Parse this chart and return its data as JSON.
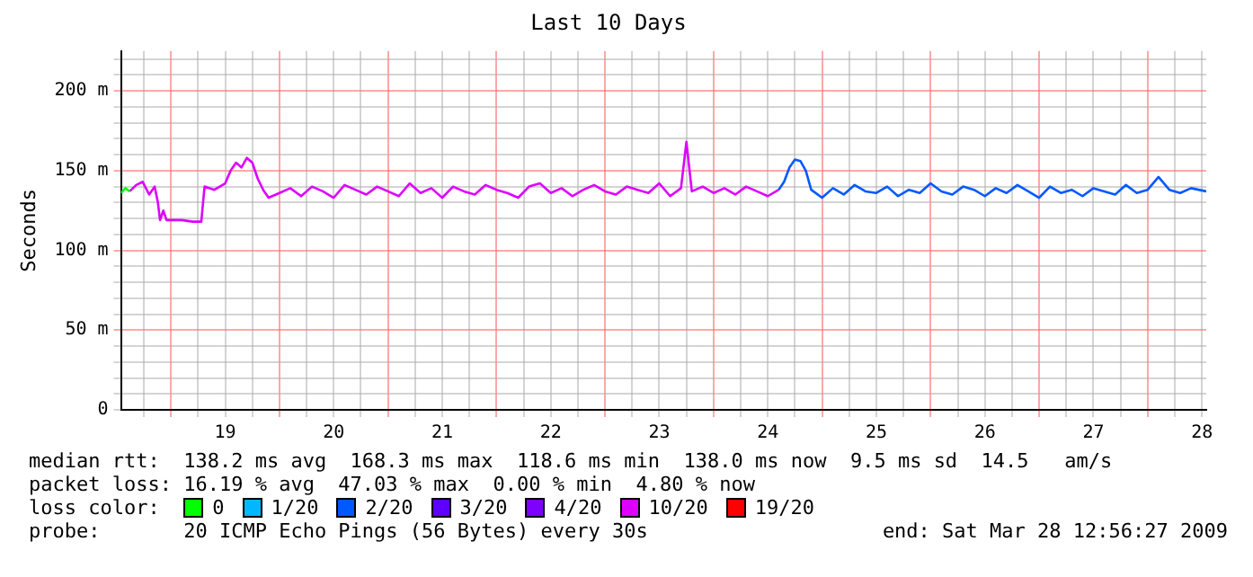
{
  "chart_data": {
    "type": "line",
    "title": "Last 10 Days",
    "ylabel": "Seconds",
    "legend_title": "loss color:",
    "legend": "bottom",
    "grid": true,
    "marker": "none",
    "line_style": "solid",
    "xlim": [
      18.54,
      28.54
    ],
    "xticks": [
      {
        "value": 18.75,
        "label": null
      },
      {
        "value": 19,
        "label": null
      },
      {
        "value": 19.25,
        "label": null
      },
      {
        "value": 19.5,
        "label": "19"
      },
      {
        "value": 19.75,
        "label": null
      },
      {
        "value": 20,
        "label": null
      },
      {
        "value": 20.25,
        "label": null
      },
      {
        "value": 20.5,
        "label": "20"
      },
      {
        "value": 20.75,
        "label": null
      },
      {
        "value": 21,
        "label": null
      },
      {
        "value": 21.25,
        "label": null
      },
      {
        "value": 21.5,
        "label": "21"
      },
      {
        "value": 21.75,
        "label": null
      },
      {
        "value": 22,
        "label": null
      },
      {
        "value": 22.25,
        "label": null
      },
      {
        "value": 22.5,
        "label": "22"
      },
      {
        "value": 22.75,
        "label": null
      },
      {
        "value": 23,
        "label": null
      },
      {
        "value": 23.25,
        "label": null
      },
      {
        "value": 23.5,
        "label": "23"
      },
      {
        "value": 23.75,
        "label": null
      },
      {
        "value": 24,
        "label": null
      },
      {
        "value": 24.25,
        "label": null
      },
      {
        "value": 24.5,
        "label": "24"
      },
      {
        "value": 24.75,
        "label": null
      },
      {
        "value": 25,
        "label": null
      },
      {
        "value": 25.25,
        "label": null
      },
      {
        "value": 25.5,
        "label": "25"
      },
      {
        "value": 25.75,
        "label": null
      },
      {
        "value": 26,
        "label": null
      },
      {
        "value": 26.25,
        "label": null
      },
      {
        "value": 26.5,
        "label": "26"
      },
      {
        "value": 26.75,
        "label": null
      },
      {
        "value": 27,
        "label": null
      },
      {
        "value": 27.25,
        "label": null
      },
      {
        "value": 27.5,
        "label": "27"
      },
      {
        "value": 27.75,
        "label": null
      },
      {
        "value": 28,
        "label": null
      },
      {
        "value": 28.25,
        "label": null
      },
      {
        "value": 28.5,
        "label": "28"
      }
    ],
    "ylim": [
      0,
      225
    ],
    "yticks": [
      0,
      {
        "value": 10,
        "label": null
      },
      {
        "value": 20,
        "label": null
      },
      {
        "value": 30,
        "label": null
      },
      {
        "value": 40,
        "label": null
      },
      {
        "value": 50,
        "label": "50 m"
      },
      {
        "value": 60,
        "label": null
      },
      {
        "value": 70,
        "label": null
      },
      {
        "value": 80,
        "label": null
      },
      {
        "value": 90,
        "label": null
      },
      {
        "value": 100,
        "label": "100 m"
      },
      {
        "value": 110,
        "label": null
      },
      {
        "value": 120,
        "label": null
      },
      {
        "value": 130,
        "label": null
      },
      {
        "value": 140,
        "label": null
      },
      {
        "value": 150,
        "label": "150 m"
      },
      {
        "value": 160,
        "label": null
      },
      {
        "value": 170,
        "label": null
      },
      {
        "value": 180,
        "label": null
      },
      {
        "value": 190,
        "label": null
      },
      {
        "value": 200,
        "label": "200 m"
      },
      {
        "value": 210,
        "label": null
      },
      {
        "value": 220,
        "label": null
      }
    ],
    "series": [
      {
        "name": "0",
        "color": "#00ff00",
        "x": [
          18.54,
          18.58,
          18.62
        ],
        "values": [
          136,
          139,
          137
        ]
      },
      {
        "name": "1/20",
        "color": "#00b8ff"
      },
      {
        "name": "2/20",
        "color": "#0059ff",
        "x": [
          24.6,
          24.65,
          24.7,
          24.75,
          24.8,
          24.85,
          24.9,
          25,
          25.1,
          25.2,
          25.3,
          25.4,
          25.5,
          25.6,
          25.7,
          25.8,
          25.9,
          26,
          26.1,
          26.2,
          26.3,
          26.4,
          26.5,
          26.6,
          26.7,
          26.8,
          26.9,
          27,
          27.1,
          27.2,
          27.3,
          27.4,
          27.5,
          27.6,
          27.7,
          27.8,
          27.9,
          28,
          28.1,
          28.2,
          28.3,
          28.4,
          28.54
        ],
        "values": [
          138,
          143,
          152,
          157,
          156,
          150,
          138,
          133,
          139,
          135,
          141,
          137,
          136,
          140,
          134,
          138,
          136,
          142,
          137,
          135,
          140,
          138,
          134,
          139,
          136,
          141,
          137,
          133,
          140,
          136,
          138,
          134,
          139,
          137,
          135,
          141,
          136,
          138,
          146,
          138,
          136,
          139,
          137
        ]
      },
      {
        "name": "3/20",
        "color": "#5e00ff"
      },
      {
        "name": "4/20",
        "color": "#7e00ff"
      },
      {
        "name": "10/20",
        "color": "#dd00ff",
        "x": [
          18.62,
          18.68,
          18.74,
          18.8,
          18.85,
          18.88,
          18.9,
          18.93,
          18.96,
          19.1,
          19.2,
          19.28,
          19.31,
          19.4,
          19.5,
          19.55,
          19.6,
          19.65,
          19.7,
          19.75,
          19.8,
          19.85,
          19.9,
          20,
          20.1,
          20.2,
          20.3,
          20.4,
          20.5,
          20.6,
          20.7,
          20.8,
          20.9,
          21,
          21.1,
          21.2,
          21.3,
          21.4,
          21.5,
          21.6,
          21.7,
          21.8,
          21.9,
          22,
          22.1,
          22.2,
          22.3,
          22.4,
          22.5,
          22.6,
          22.7,
          22.8,
          22.9,
          23,
          23.1,
          23.2,
          23.3,
          23.4,
          23.5,
          23.6,
          23.7,
          23.75,
          23.8,
          23.9,
          24,
          24.1,
          24.2,
          24.3,
          24.4,
          24.5,
          24.6
        ],
        "values": [
          137,
          141,
          143,
          135,
          140,
          130,
          119,
          125,
          119,
          119,
          118,
          118,
          140,
          138,
          142,
          150,
          155,
          152,
          158,
          155,
          145,
          138,
          133,
          136,
          139,
          134,
          140,
          137,
          133,
          141,
          138,
          135,
          140,
          137,
          134,
          142,
          136,
          139,
          133,
          140,
          137,
          135,
          141,
          138,
          136,
          133,
          140,
          142,
          136,
          139,
          134,
          138,
          141,
          137,
          135,
          140,
          138,
          136,
          142,
          134,
          139,
          168,
          137,
          140,
          136,
          139,
          135,
          140,
          137,
          134,
          138
        ]
      },
      {
        "name": "19/20",
        "color": "#ff0000"
      }
    ],
    "annotations": [
      "median rtt:  138.2 ms avg  168.3 ms max  118.6 ms min  138.0 ms now  9.5 ms sd  14.5   am/s",
      "packet loss: 16.19 % avg  47.03 % max  0.00 % min  4.80 % now",
      "probe:       20 ICMP Echo Pings (56 Bytes) every 30s",
      "end: Sat Mar 28 12:56:27 2009"
    ]
  }
}
